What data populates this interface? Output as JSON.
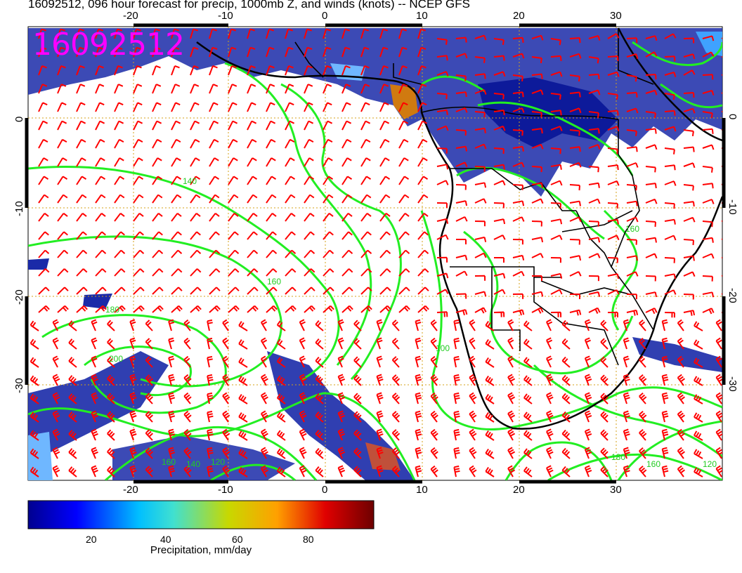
{
  "title": "16092512, 096 hour forecast for precip, 1000mb Z, and winds (knots) -- NCEP GFS",
  "stamp": "16092512",
  "map": {
    "lon_ticks": [
      "-20",
      "-10",
      "0",
      "10",
      "20",
      "30"
    ],
    "lat_ticks": [
      "0",
      "-10",
      "-20",
      "-30"
    ],
    "contour_labels": [
      "140",
      "160",
      "180",
      "200",
      "120",
      "100"
    ],
    "colors": {
      "contour": "#22ee22",
      "wind_barb": "#ff0000",
      "coastline": "#000000",
      "grid": "#d4a017",
      "precip_low": "#0a0a8a",
      "precip_high": "#7a0000"
    }
  },
  "colorbar": {
    "ticks": [
      "20",
      "40",
      "60",
      "80"
    ],
    "label": "Precipitation, mm/day",
    "colors": [
      "#00008f",
      "#0000ff",
      "#00bfff",
      "#40e0d0",
      "#c8d800",
      "#ffa000",
      "#e00000",
      "#6e0000"
    ]
  }
}
